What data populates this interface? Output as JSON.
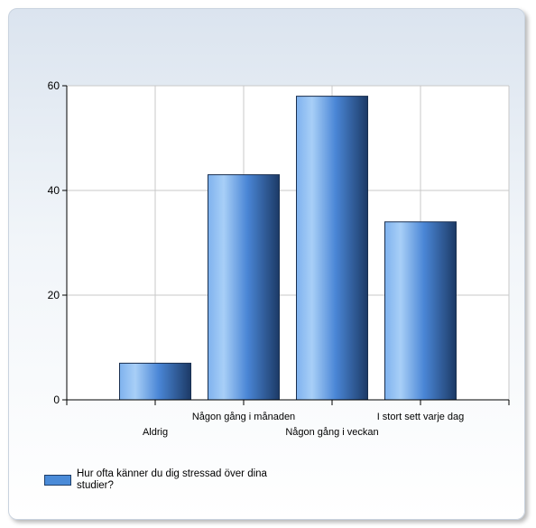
{
  "chart_data": {
    "type": "bar",
    "categories": [
      "Aldrig",
      "Någon gång i månaden",
      "Någon gång i veckan",
      "I stort sett varje dag"
    ],
    "series": [
      {
        "name": "Hur ofta känner du dig stressad över dina studier?",
        "values": [
          7,
          43,
          58,
          34
        ]
      }
    ],
    "yticks": [
      "0",
      "20",
      "40",
      "60"
    ],
    "ylim": [
      0,
      60
    ],
    "grid": true,
    "legend_position": "bottom-left",
    "colors": {
      "bar_light": "#a8cff7",
      "bar_mid": "#4a86d6",
      "bar_dark": "#1c3a66",
      "grid": "#c8c8c8"
    }
  }
}
